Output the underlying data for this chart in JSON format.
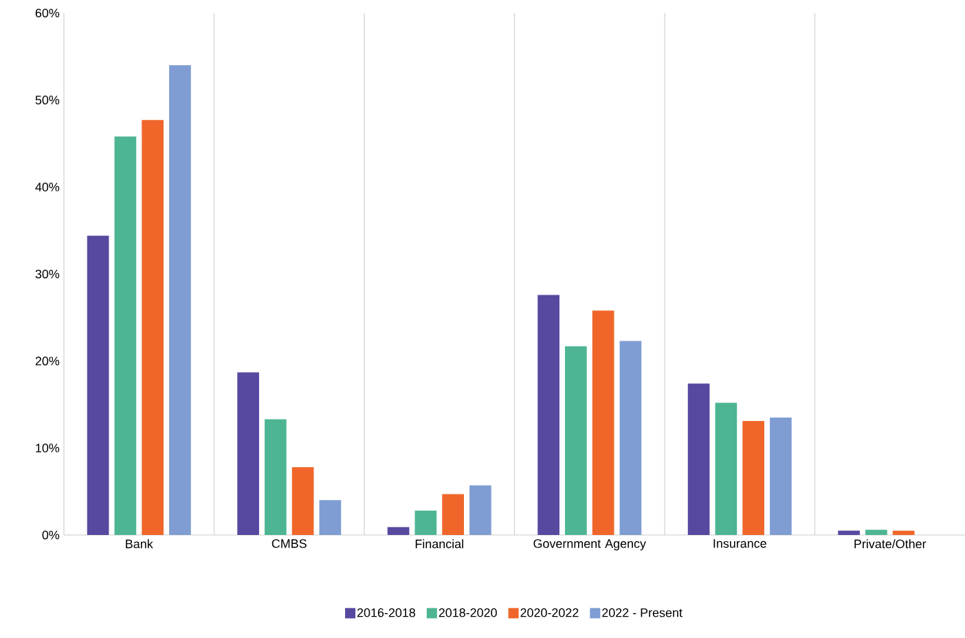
{
  "chart_data": {
    "type": "bar",
    "categories": [
      "Bank",
      "CMBS",
      "Financial",
      "Government Agency",
      "Insurance",
      "Private/Other"
    ],
    "series": [
      {
        "name": "2016-2018",
        "color": "#5748a0",
        "values": [
          34.4,
          18.7,
          0.9,
          27.6,
          17.4,
          0.5
        ]
      },
      {
        "name": "2018-2020",
        "color": "#4db593",
        "values": [
          45.8,
          13.3,
          2.8,
          21.7,
          15.2,
          0.6
        ]
      },
      {
        "name": "2020-2022",
        "color": "#f0662a",
        "values": [
          47.7,
          7.8,
          4.7,
          25.8,
          13.1,
          0.5
        ]
      },
      {
        "name": "2022 - Present",
        "color": "#7f9dd2",
        "values": [
          54.0,
          4.0,
          5.7,
          22.3,
          13.5,
          null
        ]
      }
    ],
    "ylim": [
      0,
      60
    ],
    "yticks": [
      {
        "value": 0,
        "label": "0%"
      },
      {
        "value": 10,
        "label": "10%"
      },
      {
        "value": 20,
        "label": "20%"
      },
      {
        "value": 30,
        "label": "30%"
      },
      {
        "value": 40,
        "label": "40%"
      },
      {
        "value": 50,
        "label": "50%"
      },
      {
        "value": 60,
        "label": "60%"
      }
    ],
    "grid": "x",
    "legend": "bottom"
  }
}
